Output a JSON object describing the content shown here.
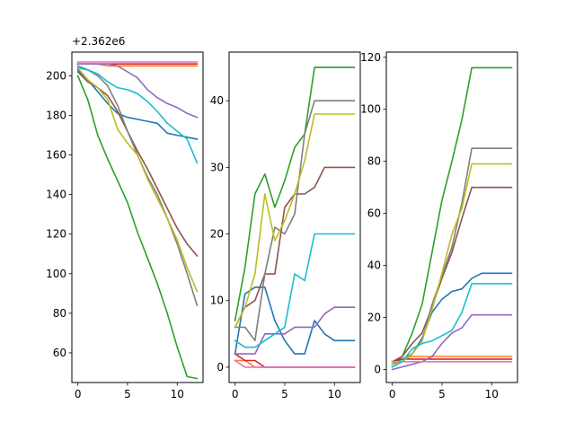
{
  "chart_data": [
    {
      "type": "line",
      "panel": "left",
      "y_offset_label": "+2.362e6",
      "xlim": [
        -0.6,
        12.6
      ],
      "ylim": [
        45,
        212
      ],
      "xticks": [
        0,
        5,
        10
      ],
      "yticks": [
        60,
        80,
        100,
        120,
        140,
        160,
        180,
        200
      ],
      "grid": false,
      "series": [
        {
          "color": "#1f77b4",
          "x": [
            0,
            1,
            2,
            3,
            4,
            5,
            6,
            7,
            8,
            9,
            10,
            11,
            12
          ],
          "y": [
            203,
            198,
            192,
            186,
            181,
            179,
            178,
            177,
            176,
            171,
            170,
            169,
            168
          ]
        },
        {
          "color": "#ff7f0e",
          "x": [
            0,
            1,
            2,
            3,
            4,
            5,
            6,
            7,
            8,
            9,
            10,
            11,
            12
          ],
          "y": [
            206,
            206,
            206,
            205,
            205,
            205,
            205,
            205,
            205,
            205,
            205,
            205,
            205
          ]
        },
        {
          "color": "#2ca02c",
          "x": [
            0,
            1,
            2,
            3,
            4,
            5,
            6,
            7,
            8,
            9,
            10,
            11,
            12
          ],
          "y": [
            200,
            188,
            170,
            158,
            147,
            136,
            121,
            108,
            95,
            80,
            63,
            48,
            47
          ]
        },
        {
          "color": "#d62728",
          "x": [
            0,
            1,
            2,
            3,
            4,
            5,
            6,
            7,
            8,
            9,
            10,
            11,
            12
          ],
          "y": [
            206,
            206,
            206,
            206,
            206,
            206,
            206,
            206,
            206,
            206,
            206,
            206,
            206
          ]
        },
        {
          "color": "#9467bd",
          "x": [
            0,
            1,
            2,
            3,
            4,
            5,
            6,
            7,
            8,
            9,
            10,
            11,
            12
          ],
          "y": [
            206,
            206,
            206,
            206,
            205,
            202,
            199,
            193,
            189,
            186,
            184,
            181,
            179
          ]
        },
        {
          "color": "#8c564b",
          "x": [
            0,
            1,
            2,
            3,
            4,
            5,
            6,
            7,
            8,
            9,
            10,
            11,
            12
          ],
          "y": [
            202,
            197,
            194,
            190,
            182,
            172,
            162,
            153,
            143,
            133,
            123,
            115,
            109
          ]
        },
        {
          "color": "#e377c2",
          "x": [
            0,
            1,
            2,
            3,
            4,
            5,
            6,
            7,
            8,
            9,
            10,
            11,
            12
          ],
          "y": [
            207,
            207,
            207,
            207,
            207,
            207,
            207,
            207,
            207,
            207,
            207,
            207,
            207
          ]
        },
        {
          "color": "#7f7f7f",
          "x": [
            0,
            1,
            2,
            3,
            4,
            5,
            6,
            7,
            8,
            9,
            10,
            11,
            12
          ],
          "y": [
            205,
            203,
            200,
            195,
            185,
            172,
            160,
            149,
            140,
            128,
            115,
            100,
            84
          ]
        },
        {
          "color": "#bcbd22",
          "x": [
            0,
            1,
            2,
            3,
            4,
            5,
            6,
            7,
            8,
            9,
            10,
            11,
            12
          ],
          "y": [
            204,
            198,
            194,
            188,
            173,
            166,
            160,
            148,
            138,
            128,
            117,
            103,
            91
          ]
        },
        {
          "color": "#17becf",
          "x": [
            0,
            1,
            2,
            3,
            4,
            5,
            6,
            7,
            8,
            9,
            10,
            11,
            12
          ],
          "y": [
            204,
            203,
            201,
            197,
            194,
            193,
            191,
            187,
            182,
            176,
            172,
            168,
            156
          ]
        }
      ]
    },
    {
      "type": "line",
      "panel": "middle",
      "xlim": [
        -0.6,
        12.6
      ],
      "ylim": [
        -2.3,
        47.3
      ],
      "xticks": [
        0,
        5,
        10
      ],
      "yticks": [
        0,
        10,
        20,
        30,
        40
      ],
      "grid": false,
      "series": [
        {
          "color": "#1f77b4",
          "x": [
            0,
            1,
            2,
            3,
            4,
            5,
            6,
            7,
            8,
            9,
            10,
            11,
            12
          ],
          "y": [
            2,
            11,
            12,
            12,
            7,
            4,
            2,
            2,
            7,
            5,
            4,
            4,
            4
          ]
        },
        {
          "color": "#ff7f0e",
          "x": [
            0,
            1,
            2,
            3,
            4,
            5,
            6,
            7,
            8,
            9,
            10,
            11,
            12
          ],
          "y": [
            1,
            1,
            0,
            0,
            0,
            0,
            0,
            0,
            0,
            0,
            0,
            0,
            0
          ]
        },
        {
          "color": "#2ca02c",
          "x": [
            0,
            1,
            2,
            3,
            4,
            5,
            6,
            7,
            8,
            9,
            10,
            11,
            12
          ],
          "y": [
            7,
            15,
            26,
            29,
            24,
            28,
            33,
            35,
            45,
            45,
            45,
            45,
            45
          ]
        },
        {
          "color": "#d62728",
          "x": [
            0,
            1,
            2,
            3,
            4,
            5,
            6,
            7,
            8,
            9,
            10,
            11,
            12
          ],
          "y": [
            2,
            1,
            1,
            0,
            0,
            0,
            0,
            0,
            0,
            0,
            0,
            0,
            0
          ]
        },
        {
          "color": "#9467bd",
          "x": [
            0,
            1,
            2,
            3,
            4,
            5,
            6,
            7,
            8,
            9,
            10,
            11,
            12
          ],
          "y": [
            2,
            2,
            2,
            5,
            5,
            5,
            6,
            6,
            6,
            8,
            9,
            9,
            9
          ]
        },
        {
          "color": "#8c564b",
          "x": [
            0,
            1,
            2,
            3,
            4,
            5,
            6,
            7,
            8,
            9,
            10,
            11,
            12
          ],
          "y": [
            6,
            9,
            10,
            14,
            14,
            24,
            26,
            26,
            27,
            30,
            30,
            30,
            30
          ]
        },
        {
          "color": "#e377c2",
          "x": [
            0,
            1,
            2,
            3,
            4,
            5,
            6,
            7,
            8,
            9,
            10,
            11,
            12
          ],
          "y": [
            1,
            0,
            0,
            0,
            0,
            0,
            0,
            0,
            0,
            0,
            0,
            0,
            0
          ]
        },
        {
          "color": "#7f7f7f",
          "x": [
            0,
            1,
            2,
            3,
            4,
            5,
            6,
            7,
            8,
            9,
            10,
            11,
            12
          ],
          "y": [
            6,
            6,
            4,
            14,
            21,
            20,
            23,
            35,
            40,
            40,
            40,
            40,
            40
          ]
        },
        {
          "color": "#bcbd22",
          "x": [
            0,
            1,
            2,
            3,
            4,
            5,
            6,
            7,
            8,
            9,
            10,
            11,
            12
          ],
          "y": [
            6,
            9,
            14,
            26,
            19,
            22,
            26,
            31,
            38,
            38,
            38,
            38,
            38
          ]
        },
        {
          "color": "#17becf",
          "x": [
            0,
            1,
            2,
            3,
            4,
            5,
            6,
            7,
            8,
            9,
            10,
            11,
            12
          ],
          "y": [
            4,
            3,
            3,
            4,
            5,
            6,
            14,
            13,
            20,
            20,
            20,
            20,
            20
          ]
        }
      ]
    },
    {
      "type": "line",
      "panel": "right",
      "xlim": [
        -0.6,
        12.6
      ],
      "ylim": [
        -5,
        122
      ],
      "xticks": [
        0,
        5,
        10
      ],
      "yticks": [
        0,
        20,
        40,
        60,
        80,
        100,
        120
      ],
      "grid": false,
      "series": [
        {
          "color": "#1f77b4",
          "x": [
            0,
            1,
            2,
            3,
            4,
            5,
            6,
            7,
            8,
            9,
            10,
            11,
            12
          ],
          "y": [
            2,
            4,
            6,
            12,
            22,
            27,
            30,
            31,
            35,
            37,
            37,
            37,
            37
          ]
        },
        {
          "color": "#ff7f0e",
          "x": [
            0,
            1,
            2,
            3,
            4,
            5,
            6,
            7,
            8,
            9,
            10,
            11,
            12
          ],
          "y": [
            3,
            4,
            5,
            5,
            5,
            5,
            5,
            5,
            5,
            5,
            5,
            5,
            5
          ]
        },
        {
          "color": "#2ca02c",
          "x": [
            0,
            1,
            2,
            3,
            4,
            5,
            6,
            7,
            8,
            9,
            10,
            11,
            12
          ],
          "y": [
            2,
            5,
            14,
            25,
            45,
            65,
            80,
            96,
            116,
            116,
            116,
            116,
            116
          ]
        },
        {
          "color": "#d62728",
          "x": [
            0,
            1,
            2,
            3,
            4,
            5,
            6,
            7,
            8,
            9,
            10,
            11,
            12
          ],
          "y": [
            3,
            4,
            4,
            4,
            4,
            4,
            4,
            4,
            4,
            4,
            4,
            4,
            4
          ]
        },
        {
          "color": "#9467bd",
          "x": [
            0,
            1,
            2,
            3,
            4,
            5,
            6,
            7,
            8,
            9,
            10,
            11,
            12
          ],
          "y": [
            0,
            1,
            2,
            3,
            5,
            10,
            14,
            16,
            21,
            21,
            21,
            21,
            21
          ]
        },
        {
          "color": "#8c564b",
          "x": [
            0,
            1,
            2,
            3,
            4,
            5,
            6,
            7,
            8,
            9,
            10,
            11,
            12
          ],
          "y": [
            3,
            5,
            10,
            14,
            24,
            35,
            45,
            58,
            70,
            70,
            70,
            70,
            70
          ]
        },
        {
          "color": "#e377c2",
          "x": [
            0,
            1,
            2,
            3,
            4,
            5,
            6,
            7,
            8,
            9,
            10,
            11,
            12
          ],
          "y": [
            3,
            3,
            3,
            3,
            3,
            3,
            3,
            3,
            3,
            3,
            3,
            3,
            3
          ]
        },
        {
          "color": "#7f7f7f",
          "x": [
            0,
            1,
            2,
            3,
            4,
            5,
            6,
            7,
            8,
            9,
            10,
            11,
            12
          ],
          "y": [
            1,
            3,
            6,
            11,
            25,
            36,
            47,
            64,
            85,
            85,
            85,
            85,
            85
          ]
        },
        {
          "color": "#bcbd22",
          "x": [
            0,
            1,
            2,
            3,
            4,
            5,
            6,
            7,
            8,
            9,
            10,
            11,
            12
          ],
          "y": [
            2,
            3,
            6,
            11,
            23,
            37,
            52,
            62,
            79,
            79,
            79,
            79,
            79
          ]
        },
        {
          "color": "#17becf",
          "x": [
            0,
            1,
            2,
            3,
            4,
            5,
            6,
            7,
            8,
            9,
            10,
            11,
            12
          ],
          "y": [
            1,
            3,
            8,
            10,
            11,
            13,
            15,
            22,
            33,
            33,
            33,
            33,
            33
          ]
        }
      ]
    }
  ]
}
